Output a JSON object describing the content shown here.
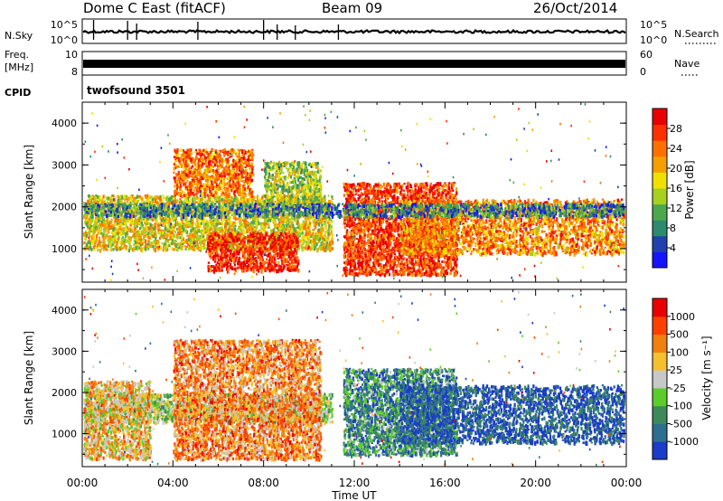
{
  "header": {
    "title": "Dome C East (fitACF)",
    "beam": "Beam 09",
    "date": "26/Oct/2014"
  },
  "top_panels": {
    "nsky_label": "N.Sky",
    "nsky_ticks": [
      "10^5",
      "10^0"
    ],
    "nsearch_label": "N.Search",
    "nsearch_ticks": [
      "10^5",
      "10^0"
    ],
    "freq_label_1": "Freq.",
    "freq_label_2": "[MHz]",
    "freq_ticks": [
      "10",
      "8"
    ],
    "nave_label": "Nave",
    "nave_ticks": [
      "60",
      "0"
    ],
    "cpid_label": "CPID",
    "cpid_text": "twofsound 3501"
  },
  "chart_data": [
    {
      "type": "heatmap",
      "panel": "power",
      "ylabel": "Slant Range [km]",
      "y_ticks": [
        1000,
        2000,
        3000,
        4000
      ],
      "ylim": [
        200,
        4500
      ],
      "x_range_hours": [
        0,
        24
      ],
      "colorbar_label": "Power [dB]",
      "colorbar_ticks": [
        "28",
        "24",
        "20",
        "16",
        "12",
        "8",
        "4"
      ],
      "colorbar_colors": [
        "#1414ff",
        "#2040b0",
        "#2c8a6e",
        "#4da84d",
        "#a8d020",
        "#f0e000",
        "#f5a000",
        "#ff7000",
        "#ff3000",
        "#e80000"
      ],
      "echo_bands": [
        {
          "t0": 0.0,
          "t1": 11.0,
          "r0": 1000,
          "r1": 2300,
          "level": 0.55
        },
        {
          "t0": 4.0,
          "t1": 7.5,
          "r0": 2300,
          "r1": 3400,
          "level": 0.75
        },
        {
          "t0": 8.0,
          "t1": 10.5,
          "r0": 2000,
          "r1": 3100,
          "level": 0.45
        },
        {
          "t0": 5.5,
          "t1": 9.5,
          "r0": 500,
          "r1": 1400,
          "level": 0.9
        },
        {
          "t0": 11.5,
          "t1": 16.5,
          "r0": 400,
          "r1": 2600,
          "level": 0.85
        },
        {
          "t0": 14.0,
          "t1": 24.0,
          "r0": 900,
          "r1": 2200,
          "level": 0.7
        },
        {
          "t0": 0.0,
          "t1": 24.0,
          "r0": 1800,
          "r1": 2100,
          "level": 0.25
        }
      ]
    },
    {
      "type": "heatmap",
      "panel": "velocity",
      "ylabel": "Slant Range [km]",
      "y_ticks": [
        1000,
        2000,
        3000,
        4000
      ],
      "ylim": [
        200,
        4500
      ],
      "x_range_hours": [
        0,
        24
      ],
      "x_ticks": [
        "00:00",
        "04:00",
        "08:00",
        "12:00",
        "16:00",
        "20:00",
        "00:00"
      ],
      "xlabel": "Time UT",
      "colorbar_label": "Velocity [m s⁻¹]",
      "colorbar_ticks": [
        "1000",
        "500",
        "100",
        "25",
        "-25",
        "-100",
        "-500",
        "-1000"
      ],
      "colorbar_colors": [
        "#1a3cc8",
        "#2e6e8e",
        "#3c8a5a",
        "#5ccc2c",
        "#c8c8c8",
        "#f5c030",
        "#f08010",
        "#ff4000",
        "#e80000"
      ],
      "echo_bands": [
        {
          "t0": 0.0,
          "t1": 11.0,
          "r0": 1300,
          "r1": 2000,
          "level": 0.45
        },
        {
          "t0": 4.0,
          "t1": 10.5,
          "r0": 400,
          "r1": 3300,
          "level": 0.7
        },
        {
          "t0": 11.5,
          "t1": 16.5,
          "r0": 500,
          "r1": 2600,
          "level": 0.25
        },
        {
          "t0": 14.0,
          "t1": 24.0,
          "r0": 800,
          "r1": 2200,
          "level": 0.1
        },
        {
          "t0": 0.0,
          "t1": 3.0,
          "r0": 400,
          "r1": 2300,
          "level": 0.6
        }
      ]
    }
  ]
}
